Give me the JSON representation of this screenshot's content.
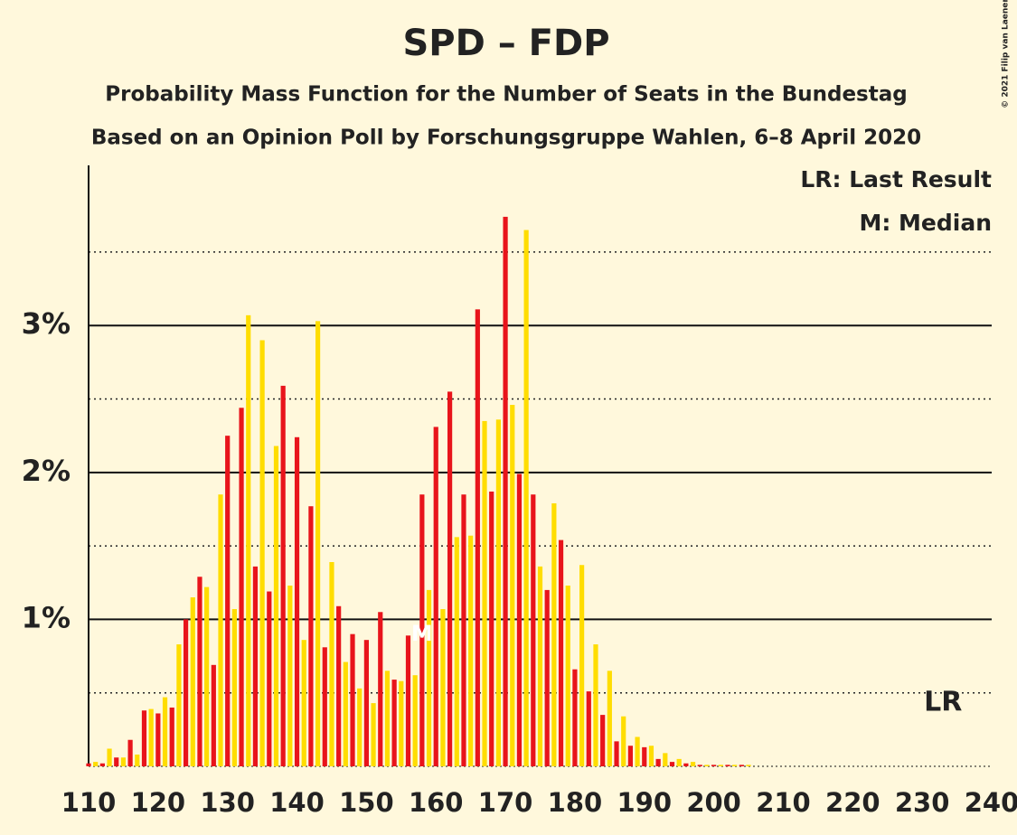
{
  "chart_data": {
    "type": "bar",
    "title": "SPD – FDP",
    "subtitle": "Probability Mass Function for the Number of Seats in the Bundestag",
    "subtitle2": "Based on an Opinion Poll by Forschungsgruppe Wahlen, 6–8 April 2020",
    "copyright": "© 2021 Filip van Laenen",
    "legend": [
      "LR: Last Result",
      "M: Median"
    ],
    "median": 158,
    "median_label": "M",
    "last_result": 233,
    "last_result_label": "LR",
    "colors": [
      "#e8141b",
      "#ffdd00"
    ],
    "x": [
      110,
      111,
      112,
      113,
      114,
      115,
      116,
      117,
      118,
      119,
      120,
      121,
      122,
      123,
      124,
      125,
      126,
      127,
      128,
      129,
      130,
      131,
      132,
      133,
      134,
      135,
      136,
      137,
      138,
      139,
      140,
      141,
      142,
      143,
      144,
      145,
      146,
      147,
      148,
      149,
      150,
      151,
      152,
      153,
      154,
      155,
      156,
      157,
      158,
      159,
      160,
      161,
      162,
      163,
      164,
      165,
      166,
      167,
      168,
      169,
      170,
      171,
      172,
      173,
      174,
      175,
      176,
      177,
      178,
      179,
      180,
      181,
      182,
      183,
      184,
      185,
      186,
      187,
      188,
      189,
      190,
      191,
      192,
      193,
      194,
      195,
      196,
      197,
      198,
      199,
      200,
      201,
      202,
      203,
      204,
      205
    ],
    "values": [
      0.02,
      0.03,
      0.02,
      0.12,
      0.06,
      0.06,
      0.18,
      0.08,
      0.38,
      0.39,
      0.36,
      0.47,
      0.4,
      0.83,
      1.0,
      1.15,
      1.29,
      1.22,
      0.69,
      1.85,
      2.25,
      1.07,
      2.44,
      3.07,
      1.36,
      2.9,
      1.19,
      2.18,
      2.59,
      1.23,
      2.24,
      0.86,
      1.77,
      3.03,
      0.81,
      1.39,
      1.09,
      0.71,
      0.9,
      0.53,
      0.86,
      0.43,
      1.05,
      0.65,
      0.59,
      0.58,
      0.89,
      0.62,
      1.85,
      1.2,
      2.31,
      1.07,
      2.55,
      1.56,
      1.85,
      1.57,
      3.11,
      2.35,
      1.87,
      2.36,
      3.74,
      2.46,
      1.99,
      3.65,
      1.85,
      1.36,
      1.2,
      1.79,
      1.54,
      1.23,
      0.66,
      1.37,
      0.51,
      0.83,
      0.35,
      0.65,
      0.17,
      0.34,
      0.14,
      0.2,
      0.13,
      0.14,
      0.05,
      0.09,
      0.03,
      0.05,
      0.02,
      0.03,
      0.01,
      0.01,
      0.01,
      0.01,
      0.01,
      0.01,
      0.01,
      0.01
    ],
    "xlim": [
      110,
      240
    ],
    "xticks": [
      110,
      120,
      130,
      140,
      150,
      160,
      170,
      180,
      190,
      200,
      210,
      220,
      230,
      240
    ],
    "ylim": [
      0,
      4.09
    ],
    "yticks": [
      {
        "value": 1,
        "label": "1%"
      },
      {
        "value": 2,
        "label": "2%"
      },
      {
        "value": 3,
        "label": "3%"
      }
    ],
    "minor_yticks": [
      0.5,
      1.5,
      2.5,
      3.5
    ],
    "grid": true
  }
}
